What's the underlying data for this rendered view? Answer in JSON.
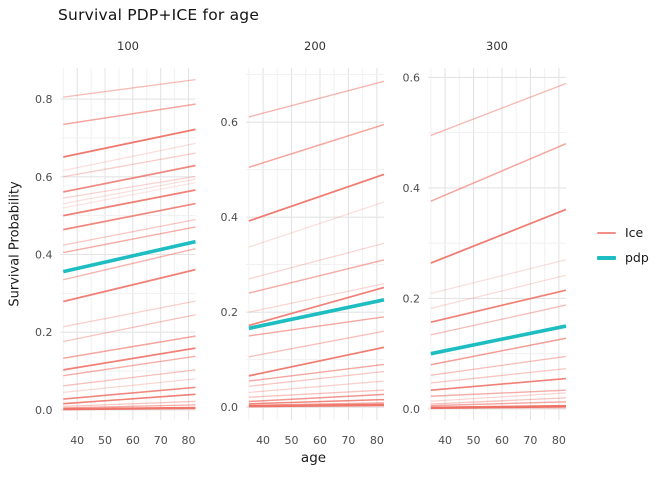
{
  "chart_data": {
    "type": "line",
    "title": "Survival PDP+ICE for age",
    "xlabel": "age",
    "ylabel": "Survival Probability",
    "x_domain": [
      34,
      82.5
    ],
    "x_line_span": [
      35,
      82.5
    ],
    "x_ticks": [
      40,
      50,
      60,
      70,
      80
    ],
    "x_minor_ticks": [
      35,
      45,
      55,
      65,
      75
    ],
    "grid": "on",
    "legend_position": "right",
    "legend": {
      "items": [
        {
          "label": "Ice",
          "color": "#ee6a5f",
          "type": "ice"
        },
        {
          "label": "pdp",
          "color": "#1dbdc1",
          "type": "pdp"
        }
      ]
    },
    "colors": {
      "ice": "#ee6a5f",
      "pdp": "#1dbdc1",
      "grid_major": "#e4e4e4",
      "grid_minor": "#f1f1f1",
      "tick_label": "#4d4d4d",
      "strip_label": "#333333"
    },
    "panels": [
      {
        "label": "100",
        "ylim": [
          -0.026,
          0.88
        ],
        "y_ticks": [
          0.0,
          0.2,
          0.4,
          0.6,
          0.8
        ],
        "y_tick_labels": [
          "0.0",
          "0.2",
          "0.4",
          "0.6",
          "0.8"
        ],
        "pdp": [
          0.356,
          0.433
        ],
        "ice": [
          [
            0.805,
            0.85,
            0.45,
            1.3
          ],
          [
            0.735,
            0.787,
            0.6,
            1.5
          ],
          [
            0.651,
            0.722,
            0.9,
            1.8
          ],
          [
            0.616,
            0.686,
            0.22,
            1.2
          ],
          [
            0.6,
            0.661,
            0.35,
            1.3
          ],
          [
            0.561,
            0.629,
            0.8,
            1.7
          ],
          [
            0.545,
            0.601,
            0.3,
            1.2
          ],
          [
            0.531,
            0.594,
            0.22,
            1.2
          ],
          [
            0.52,
            0.585,
            0.18,
            1.2
          ],
          [
            0.5,
            0.566,
            0.85,
            1.8
          ],
          [
            0.464,
            0.531,
            0.8,
            1.7
          ],
          [
            0.424,
            0.49,
            0.38,
            1.3
          ],
          [
            0.405,
            0.471,
            0.55,
            1.4
          ],
          [
            0.335,
            0.415,
            0.5,
            1.4
          ],
          [
            0.279,
            0.361,
            0.85,
            1.8
          ],
          [
            0.214,
            0.28,
            0.32,
            1.3
          ],
          [
            0.176,
            0.245,
            0.4,
            1.3
          ],
          [
            0.133,
            0.19,
            0.6,
            1.5
          ],
          [
            0.103,
            0.159,
            0.85,
            1.7
          ],
          [
            0.088,
            0.138,
            0.55,
            1.4
          ],
          [
            0.062,
            0.103,
            0.42,
            1.3
          ],
          [
            0.045,
            0.08,
            0.28,
            1.2
          ],
          [
            0.028,
            0.058,
            0.8,
            1.6
          ],
          [
            0.016,
            0.04,
            0.85,
            1.6
          ],
          [
            0.009,
            0.022,
            0.4,
            1.2
          ],
          [
            0.005,
            0.013,
            0.55,
            1.3
          ],
          [
            0.002,
            0.005,
            0.9,
            2.4
          ],
          [
            0.001,
            0.003,
            0.3,
            1.2
          ]
        ]
      },
      {
        "label": "200",
        "ylim": [
          -0.027,
          0.714
        ],
        "y_ticks": [
          0.0,
          0.2,
          0.4,
          0.6
        ],
        "y_tick_labels": [
          "0.0",
          "0.2",
          "0.4",
          "0.6"
        ],
        "pdp": [
          0.166,
          0.226
        ],
        "ice": [
          [
            0.611,
            0.686,
            0.5,
            1.4
          ],
          [
            0.505,
            0.595,
            0.6,
            1.5
          ],
          [
            0.392,
            0.49,
            0.88,
            1.8
          ],
          [
            0.337,
            0.432,
            0.22,
            1.2
          ],
          [
            0.27,
            0.345,
            0.3,
            1.2
          ],
          [
            0.24,
            0.31,
            0.55,
            1.4
          ],
          [
            0.2,
            0.26,
            0.28,
            1.2
          ],
          [
            0.172,
            0.252,
            0.85,
            1.7
          ],
          [
            0.15,
            0.19,
            0.6,
            1.4
          ],
          [
            0.106,
            0.16,
            0.42,
            1.3
          ],
          [
            0.066,
            0.126,
            0.88,
            1.8
          ],
          [
            0.055,
            0.09,
            0.6,
            1.4
          ],
          [
            0.044,
            0.075,
            0.38,
            1.3
          ],
          [
            0.031,
            0.055,
            0.32,
            1.2
          ],
          [
            0.021,
            0.036,
            0.4,
            1.3
          ],
          [
            0.012,
            0.027,
            0.7,
            1.5
          ],
          [
            0.007,
            0.016,
            0.8,
            1.5
          ],
          [
            0.004,
            0.009,
            0.6,
            1.3
          ],
          [
            0.002,
            0.005,
            0.9,
            2.4
          ],
          [
            0.001,
            0.002,
            0.35,
            1.2
          ]
        ]
      },
      {
        "label": "300",
        "ylim": [
          -0.02,
          0.617
        ],
        "y_ticks": [
          0.0,
          0.2,
          0.4,
          0.6
        ],
        "y_tick_labels": [
          "0.0",
          "0.2",
          "0.4",
          "0.6"
        ],
        "pdp": [
          0.1,
          0.15
        ],
        "ice": [
          [
            0.495,
            0.589,
            0.45,
            1.4
          ],
          [
            0.376,
            0.48,
            0.6,
            1.5
          ],
          [
            0.264,
            0.361,
            0.88,
            1.8
          ],
          [
            0.209,
            0.27,
            0.22,
            1.2
          ],
          [
            0.182,
            0.242,
            0.25,
            1.2
          ],
          [
            0.157,
            0.215,
            0.85,
            1.7
          ],
          [
            0.134,
            0.188,
            0.45,
            1.3
          ],
          [
            0.08,
            0.128,
            0.65,
            1.5
          ],
          [
            0.061,
            0.095,
            0.45,
            1.3
          ],
          [
            0.047,
            0.073,
            0.38,
            1.3
          ],
          [
            0.034,
            0.055,
            0.85,
            1.6
          ],
          [
            0.023,
            0.034,
            0.55,
            1.4
          ],
          [
            0.014,
            0.029,
            0.3,
            1.2
          ],
          [
            0.009,
            0.02,
            0.4,
            1.3
          ],
          [
            0.006,
            0.013,
            0.6,
            1.4
          ],
          [
            0.002,
            0.005,
            0.92,
            2.6
          ],
          [
            0.002,
            0.004,
            0.5,
            1.2
          ],
          [
            0.001,
            0.002,
            0.35,
            1.2
          ]
        ]
      }
    ]
  }
}
